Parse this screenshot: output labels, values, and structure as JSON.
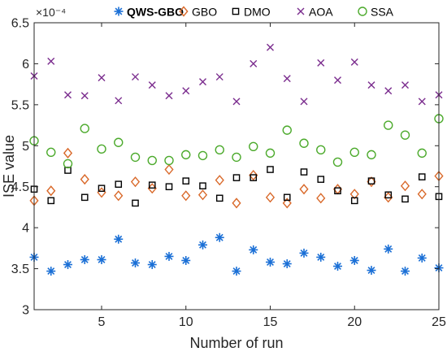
{
  "chart_data": {
    "type": "scatter",
    "title": "",
    "xlabel": "Number of run",
    "ylabel": "ISE value",
    "xlim": [
      1,
      25
    ],
    "ylim": [
      3,
      6.5
    ],
    "y_exponent_label": "×10⁻⁴",
    "x_ticks": [
      5,
      10,
      15,
      20,
      25
    ],
    "y_ticks": [
      3,
      3.5,
      4,
      4.5,
      5,
      5.5,
      6,
      6.5
    ],
    "legend_position": "top",
    "grid": false,
    "x": [
      1,
      2,
      3,
      4,
      5,
      6,
      7,
      8,
      9,
      10,
      11,
      12,
      13,
      14,
      15,
      16,
      17,
      18,
      19,
      20,
      21,
      22,
      23,
      24,
      25
    ],
    "series": [
      {
        "name": "QWS-GBO",
        "marker": "asterisk",
        "color": "#1a6fd6",
        "values": [
          3.64,
          3.47,
          3.55,
          3.61,
          3.61,
          3.86,
          3.57,
          3.55,
          3.65,
          3.6,
          3.79,
          3.88,
          3.47,
          3.73,
          3.58,
          3.56,
          3.69,
          3.64,
          3.53,
          3.6,
          3.48,
          3.74,
          3.47,
          3.63,
          3.51
        ]
      },
      {
        "name": "GBO",
        "marker": "diamond",
        "color": "#d9692a",
        "values": [
          4.33,
          4.45,
          4.91,
          4.59,
          4.43,
          4.39,
          4.56,
          4.48,
          4.71,
          4.39,
          4.4,
          4.58,
          4.3,
          4.64,
          4.37,
          4.3,
          4.47,
          4.36,
          4.47,
          4.41,
          4.56,
          4.37,
          4.51,
          4.41,
          4.63
        ]
      },
      {
        "name": "DMO",
        "marker": "square",
        "color": "#000000",
        "values": [
          4.47,
          4.33,
          4.7,
          4.37,
          4.48,
          4.53,
          4.3,
          4.52,
          4.5,
          4.57,
          4.51,
          4.36,
          4.61,
          4.61,
          4.71,
          4.37,
          4.68,
          4.59,
          4.45,
          4.33,
          4.57,
          4.4,
          4.35,
          4.62,
          4.38
        ]
      },
      {
        "name": "AOA",
        "marker": "x",
        "color": "#7b2d8e",
        "values": [
          5.85,
          6.03,
          5.62,
          5.61,
          5.83,
          5.55,
          5.84,
          5.74,
          5.61,
          5.67,
          5.78,
          5.84,
          5.54,
          6.0,
          6.2,
          5.82,
          5.54,
          6.01,
          5.8,
          6.02,
          5.74,
          5.67,
          5.74,
          5.54,
          5.62
        ]
      },
      {
        "name": "SSA",
        "marker": "circle",
        "color": "#4caa2c",
        "values": [
          5.06,
          4.92,
          4.78,
          5.21,
          4.96,
          5.04,
          4.86,
          4.82,
          4.82,
          4.89,
          4.88,
          4.95,
          4.86,
          4.99,
          4.91,
          5.19,
          5.03,
          4.95,
          4.8,
          4.92,
          4.89,
          5.25,
          5.13,
          4.91,
          5.33
        ]
      }
    ]
  }
}
